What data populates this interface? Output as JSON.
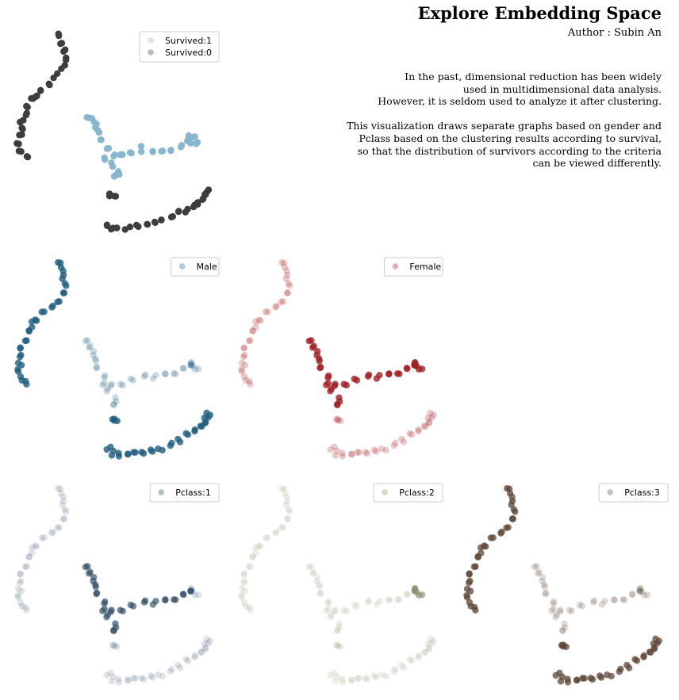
{
  "header": {
    "title": "Explore Embedding Space",
    "author": "Author : Subin An",
    "description_lines": [
      "In the past, dimensional reduction has been widely",
      "used in multidimensional data analysis.",
      "However, it is seldom used to analyze it after clustering.",
      "This visualization draws separate graphs based on gender and",
      "Pclass based on the clustering results according to survival,",
      "so that the distribution of survivors according to the criteria",
      "can be viewed differently."
    ]
  },
  "chart_data": [
    {
      "id": "survival",
      "type": "scatter",
      "title": "",
      "xlim": [
        0,
        100
      ],
      "ylim": [
        0,
        100
      ],
      "series": [
        {
          "name": "Survived:1",
          "color": "#86b5cc",
          "alpha": 0.6,
          "clusters": [
            "survivor_hook",
            "survivor_tail"
          ]
        },
        {
          "name": "Survived:0",
          "color": "#3d3d3d",
          "alpha": 0.85,
          "clusters": [
            "arc_top",
            "bottom_band"
          ]
        }
      ]
    },
    {
      "id": "male",
      "type": "scatter",
      "title": "",
      "xlim": [
        0,
        100
      ],
      "ylim": [
        0,
        100
      ],
      "series": [
        {
          "name": "Male",
          "color": "#1f5e7e",
          "alpha": 0.45,
          "clusters": [
            "arc_top",
            "survivor_hook",
            "survivor_tail",
            "bottom_band"
          ],
          "emphasis": [
            "arc_top",
            "bottom_band"
          ]
        }
      ]
    },
    {
      "id": "female",
      "type": "scatter",
      "title": "",
      "xlim": [
        0,
        100
      ],
      "ylim": [
        0,
        100
      ],
      "series": [
        {
          "name": "Female",
          "color": "#a31f24",
          "alpha": 0.45,
          "clusters": [
            "arc_top",
            "survivor_hook",
            "survivor_tail",
            "bottom_band"
          ],
          "emphasis": [
            "survivor_hook",
            "survivor_tail"
          ]
        }
      ]
    },
    {
      "id": "pclass1",
      "type": "scatter",
      "title": "",
      "xlim": [
        0,
        100
      ],
      "ylim": [
        0,
        100
      ],
      "series": [
        {
          "name": "Pclass:1",
          "color": "#2e4a63",
          "alpha": 0.3,
          "clusters": [
            "arc_top",
            "survivor_hook",
            "survivor_tail",
            "bottom_band"
          ],
          "emphasis": [
            "survivor_hook"
          ]
        }
      ]
    },
    {
      "id": "pclass2",
      "type": "scatter",
      "title": "",
      "xlim": [
        0,
        100
      ],
      "ylim": [
        0,
        100
      ],
      "series": [
        {
          "name": "Pclass:2",
          "color": "#8b8f6e",
          "alpha": 0.3,
          "clusters": [
            "arc_top",
            "survivor_hook",
            "survivor_tail",
            "bottom_band"
          ],
          "emphasis": [
            "survivor_tail"
          ]
        }
      ]
    },
    {
      "id": "pclass3",
      "type": "scatter",
      "title": "",
      "xlim": [
        0,
        100
      ],
      "ylim": [
        0,
        100
      ],
      "series": [
        {
          "name": "Pclass:3",
          "color": "#5c4636",
          "alpha": 0.4,
          "clusters": [
            "arc_top",
            "survivor_hook",
            "survivor_tail",
            "bottom_band"
          ],
          "emphasis": [
            "arc_top",
            "bottom_band"
          ]
        }
      ]
    }
  ],
  "clusters": {
    "arc_top": [
      [
        22,
        2
      ],
      [
        23,
        6
      ],
      [
        24,
        10
      ],
      [
        25,
        14
      ],
      [
        24,
        18
      ],
      [
        21,
        22
      ],
      [
        18,
        25
      ],
      [
        15,
        28
      ],
      [
        12,
        31
      ],
      [
        10,
        33
      ],
      [
        8,
        36
      ],
      [
        7,
        40
      ],
      [
        5,
        44
      ],
      [
        4,
        48
      ],
      [
        3,
        52
      ],
      [
        2,
        56
      ],
      [
        3,
        60
      ],
      [
        6,
        62
      ]
    ],
    "survivor_hook": [
      [
        36,
        42
      ],
      [
        38,
        44
      ],
      [
        40,
        47
      ],
      [
        41,
        50
      ],
      [
        42,
        54
      ],
      [
        45,
        58
      ],
      [
        48,
        62
      ],
      [
        53,
        62
      ],
      [
        58,
        60
      ],
      [
        63,
        58
      ],
      [
        68,
        59
      ],
      [
        73,
        58
      ],
      [
        78,
        58
      ],
      [
        82,
        56
      ],
      [
        85,
        54
      ],
      [
        44,
        63
      ],
      [
        47,
        66
      ],
      [
        51,
        70
      ],
      [
        49,
        72
      ]
    ],
    "survivor_tail": [
      [
        88,
        53
      ],
      [
        90,
        55
      ],
      [
        86,
        52
      ]
    ],
    "bottom_band": [
      [
        48,
        80
      ],
      [
        50,
        81
      ],
      [
        47,
        95
      ],
      [
        49,
        97
      ],
      [
        52,
        97
      ],
      [
        56,
        97
      ],
      [
        60,
        96
      ],
      [
        64,
        96
      ],
      [
        68,
        95
      ],
      [
        72,
        94
      ],
      [
        76,
        92
      ],
      [
        80,
        90
      ],
      [
        84,
        88
      ],
      [
        88,
        86
      ],
      [
        91,
        84
      ],
      [
        93,
        82
      ],
      [
        94,
        80
      ],
      [
        95,
        78
      ]
    ]
  }
}
